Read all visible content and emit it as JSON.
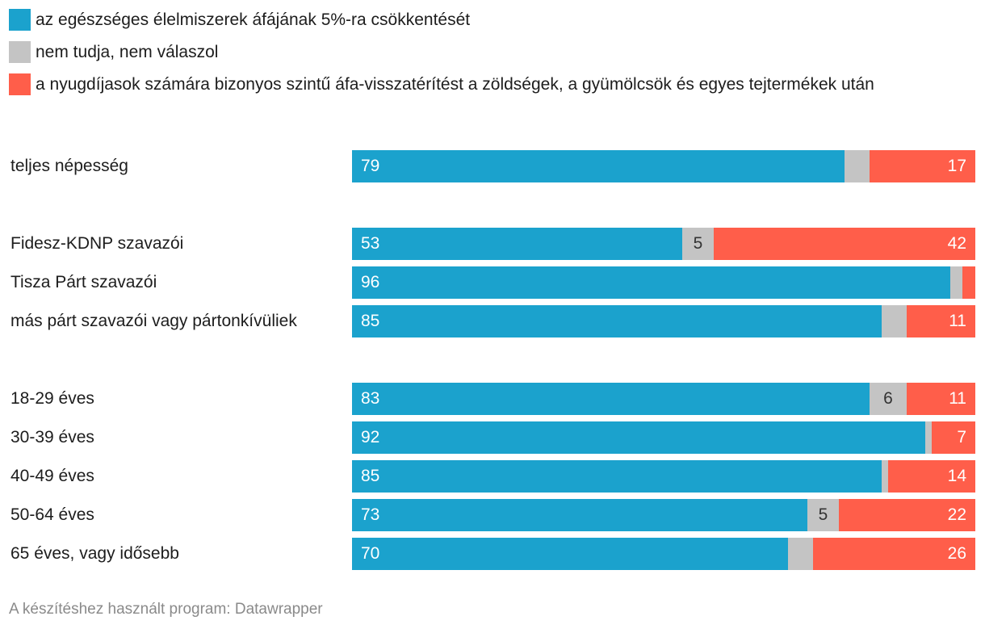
{
  "chart_data": {
    "type": "bar",
    "orientation": "horizontal",
    "stacked": true,
    "legend_position": "top-left",
    "series": [
      {
        "name": "az egészséges élelmiszerek áfájának 5%-ra csökkentését",
        "color": "#1ba2cd",
        "values": [
          79,
          53,
          96,
          85,
          83,
          92,
          85,
          73,
          70
        ],
        "labels": [
          "79",
          "53",
          "96",
          "85",
          "83",
          "92",
          "85",
          "73",
          "70"
        ]
      },
      {
        "name": "nem tudja, nem válaszol",
        "color": "#c4c4c4",
        "values": [
          4,
          5,
          2,
          4,
          6,
          1,
          1,
          5,
          4
        ],
        "labels": [
          "",
          "5",
          "",
          "",
          "6",
          "",
          "",
          "5",
          ""
        ]
      },
      {
        "name": "a nyugdíjasok számára bizonyos szintű áfa-visszatérítést a zöldségek, a gyümölcsök és egyes tejtermékek után",
        "color": "#ff5e4a",
        "values": [
          17,
          42,
          2,
          11,
          11,
          7,
          14,
          22,
          26
        ],
        "labels": [
          "17",
          "42",
          "",
          "11",
          "11",
          "7",
          "14",
          "22",
          "26"
        ]
      }
    ],
    "categories": [
      "teljes népesség",
      "Fidesz-KDNP szavazói",
      "Tisza Párt szavazói",
      "más párt szavazói vagy pártonkívüliek",
      "18-29 éves",
      "30-39 éves",
      "40-49 éves",
      "50-64 éves",
      "65 éves, vagy idősebb"
    ],
    "label_colors": [
      "#ffffff",
      "#333333",
      "#ffffff"
    ],
    "xlim": [
      0,
      100
    ]
  },
  "footer": "A készítéshez használt program: Datawrapper"
}
